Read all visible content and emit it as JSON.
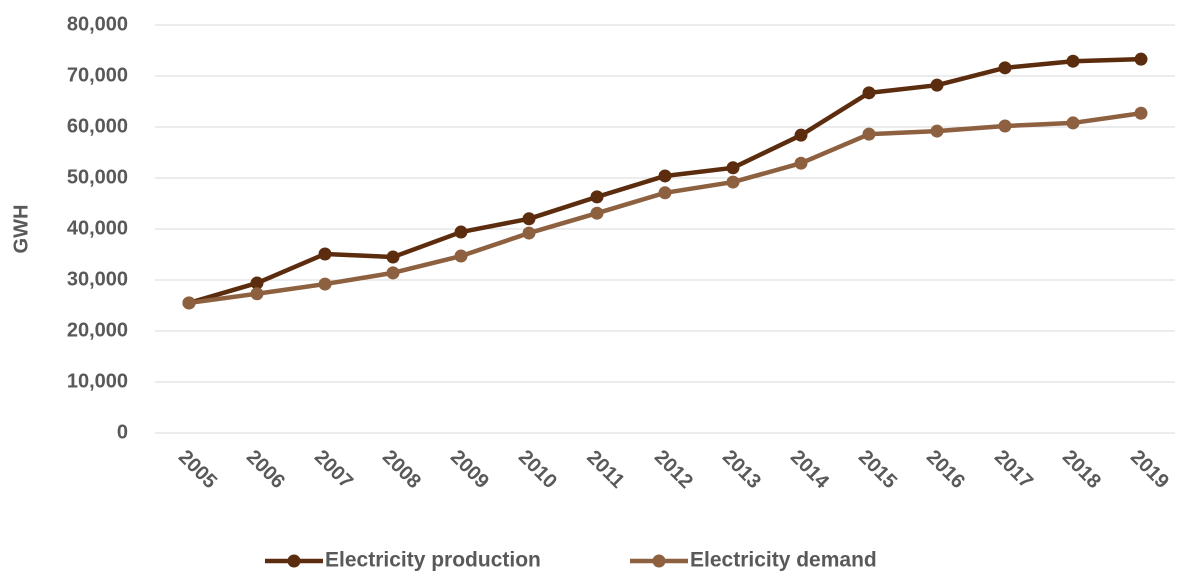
{
  "chart_data": {
    "type": "line",
    "y_label": "GWH",
    "categories": [
      "2005",
      "2006",
      "2007",
      "2008",
      "2009",
      "2010",
      "2011",
      "2012",
      "2013",
      "2014",
      "2015",
      "2016",
      "2017",
      "2018",
      "2019"
    ],
    "series": [
      {
        "name": "Electricity production",
        "color": "#5b2c0d",
        "values": [
          25500,
          29400,
          35100,
          34500,
          39400,
          42000,
          46300,
          50400,
          52000,
          58400,
          66700,
          68200,
          71600,
          72900,
          73300
        ]
      },
      {
        "name": "Electricity demand",
        "color": "#8d6040",
        "values": [
          25500,
          27300,
          29200,
          31400,
          34700,
          39200,
          43100,
          47100,
          49200,
          52900,
          58600,
          59200,
          60200,
          60800,
          62700
        ]
      }
    ],
    "ylim": [
      0,
      80000
    ],
    "yticks": [
      0,
      {
        "value": 10000,
        "label": "10,000"
      },
      {
        "value": 20000,
        "label": "20,000"
      },
      {
        "value": 30000,
        "label": "30,000"
      },
      {
        "value": 40000,
        "label": "40,000"
      },
      {
        "value": 50000,
        "label": "50,000"
      },
      {
        "value": 60000,
        "label": "60,000"
      },
      {
        "value": 70000,
        "label": "70,000"
      },
      {
        "value": 80000,
        "label": "80,000"
      }
    ],
    "grid": true,
    "legend": "bottom"
  }
}
